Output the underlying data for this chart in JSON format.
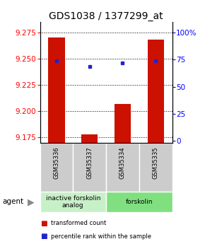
{
  "title": "GDS1038 / 1377299_at",
  "samples": [
    "GSM35336",
    "GSM35337",
    "GSM35334",
    "GSM35335"
  ],
  "red_values": [
    9.27,
    9.178,
    9.207,
    9.268
  ],
  "blue_values": [
    0.74,
    0.69,
    0.72,
    0.74
  ],
  "ylim_left": [
    9.17,
    9.285
  ],
  "ylim_right": [
    -0.02,
    1.1
  ],
  "yticks_left": [
    9.175,
    9.2,
    9.225,
    9.25,
    9.275
  ],
  "yticks_right": [
    0,
    0.25,
    0.5,
    0.75,
    1.0
  ],
  "ytick_labels_right": [
    "0",
    "25",
    "50",
    "75",
    "100%"
  ],
  "groups": [
    {
      "label": "inactive forskolin\nanalog",
      "color": "#c8f0c8"
    },
    {
      "label": "forskolin",
      "color": "#80e080"
    }
  ],
  "bar_color": "#cc1100",
  "dot_color": "#2222cc",
  "agent_label": "agent",
  "legend_red": "transformed count",
  "legend_blue": "percentile rank within the sample",
  "title_fontsize": 10,
  "tick_fontsize": 7.5,
  "bar_width": 0.5,
  "sample_box_color": "#cccccc",
  "title_color": "black"
}
